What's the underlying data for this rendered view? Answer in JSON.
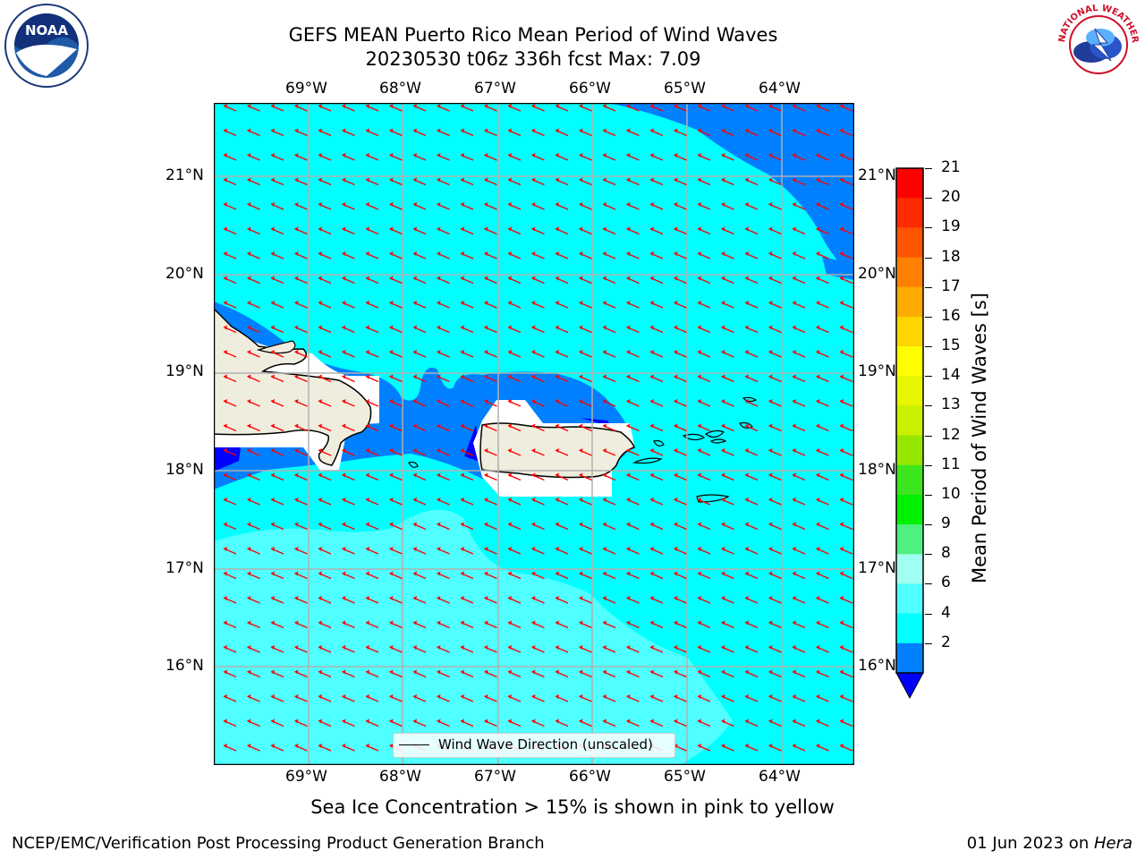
{
  "title_line1": "GEFS MEAN Puerto Rico Mean Period of Wind Waves",
  "title_line2": "20230530 t06z 336h fcst   Max: 7.09",
  "lon_ticks": [
    "69°W",
    "68°W",
    "67°W",
    "66°W",
    "65°W",
    "64°W"
  ],
  "lat_ticks": [
    "21°N",
    "20°N",
    "19°N",
    "18°N",
    "17°N",
    "16°N"
  ],
  "legend_label": "Wind Wave Direction (unscaled)",
  "colorbar": {
    "label": "Mean Period of Wind Waves [s]",
    "ticks": [
      "21",
      "20",
      "19",
      "18",
      "17",
      "16",
      "15",
      "14",
      "13",
      "12",
      "11",
      "10",
      "9",
      "8",
      "6",
      "4",
      "2"
    ],
    "colors": [
      "#ff0000",
      "#ff2a00",
      "#ff5500",
      "#ff8000",
      "#ffaa00",
      "#ffd500",
      "#ffff00",
      "#e6f500",
      "#c8f000",
      "#96e600",
      "#3ce61e",
      "#00f000",
      "#50f080",
      "#a0fff0",
      "#50ffff",
      "#00ffff",
      "#0080ff",
      "#0000ff"
    ]
  },
  "sea_ice_note": "Sea Ice Concentration > 15% is shown in pink to yellow",
  "footer_left": "NCEP/EMC/Verification Post Processing Product Generation Branch",
  "footer_date": "01 Jun 2023 on ",
  "footer_host": "Hera",
  "logos": {
    "noaa": "NOAA",
    "nws": "NATIONAL WEATHER SERVICE"
  }
}
